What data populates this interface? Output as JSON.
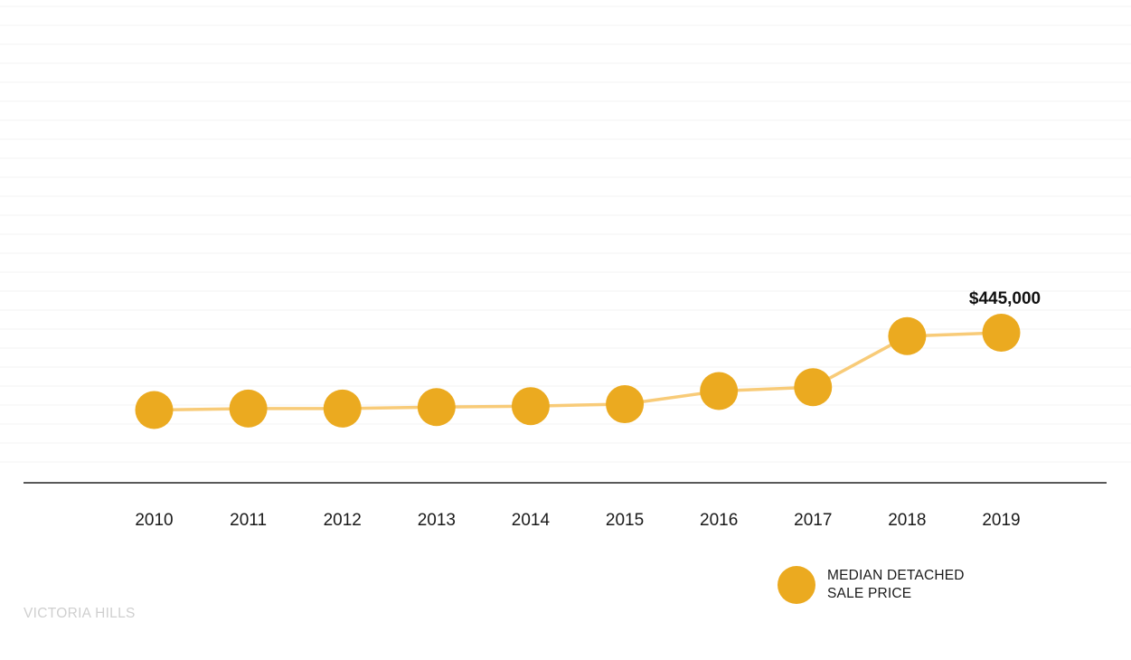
{
  "chart_data": {
    "type": "line",
    "categories": [
      "2010",
      "2011",
      "2012",
      "2013",
      "2014",
      "2015",
      "2016",
      "2017",
      "2018",
      "2019"
    ],
    "series": [
      {
        "name": "MEDIAN DETACHED SALE PRICE",
        "values": [
          286000,
          289000,
          289000,
          292000,
          294000,
          298000,
          325000,
          333000,
          438000,
          445000
        ]
      }
    ],
    "annotation": {
      "category": "2019",
      "text": "$445,000"
    },
    "grid": true,
    "legend_position": "bottom-right",
    "colors": {
      "marker": "#EBAA20",
      "line": "#F8CB78"
    }
  },
  "legend": {
    "line1": "MEDIAN DETACHED",
    "line2": "SALE PRICE"
  },
  "watermark": "VICTORIA HILLS"
}
